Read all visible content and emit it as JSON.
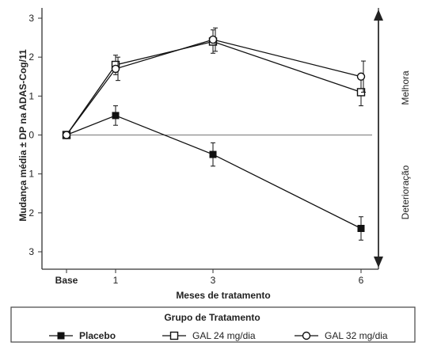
{
  "chart_data": {
    "type": "line",
    "xlabel": "Meses de tratamento",
    "ylabel": "Mudança média ± DP na ADAS-Cog/11",
    "x_tick_labels": [
      "Base",
      "1",
      "3",
      "6"
    ],
    "x": [
      0,
      1,
      3,
      6
    ],
    "y_tick_labels": [
      "-3",
      "-2",
      "-1",
      "0",
      "1",
      "2",
      "3"
    ],
    "ylim": [
      -3,
      3
    ],
    "y_inverted": true,
    "grid": false,
    "reference_line": 0,
    "side_labels": {
      "top": "Melhora",
      "bottom": "Deterioração"
    },
    "legend": {
      "title": "Grupo de Tratamento",
      "position": "bottom"
    },
    "series": [
      {
        "name": "Placebo",
        "marker": "filled-square",
        "color": "#111111",
        "y": [
          0,
          -0.5,
          0.5,
          2.4
        ],
        "err": [
          0,
          0.25,
          0.3,
          0.3
        ]
      },
      {
        "name": "GAL 24 mg/dia",
        "marker": "open-square",
        "color": "#111111",
        "y": [
          0,
          -1.8,
          -2.4,
          -1.1
        ],
        "err": [
          0,
          0.25,
          0.3,
          0.35
        ]
      },
      {
        "name": "GAL 32 mg/dia",
        "marker": "open-circle",
        "color": "#111111",
        "y": [
          0,
          -1.7,
          -2.45,
          -1.5
        ],
        "err": [
          0,
          0.3,
          0.3,
          0.4
        ]
      }
    ]
  }
}
